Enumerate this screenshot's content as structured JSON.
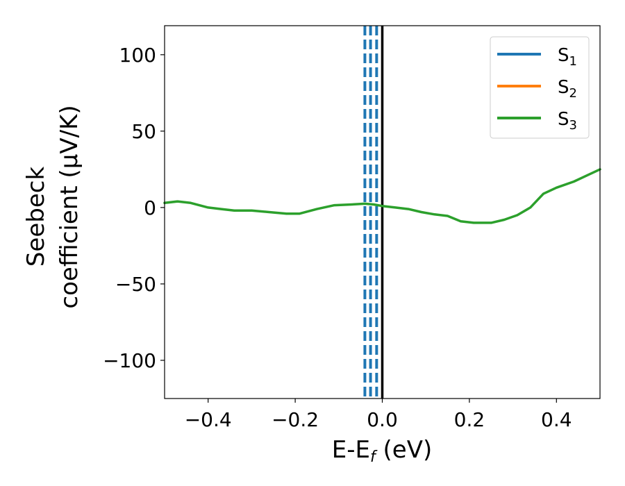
{
  "chart_data": {
    "type": "line",
    "xlabel": {
      "main": "E-E",
      "sub": "f",
      "suffix": " (eV)"
    },
    "ylabel": {
      "line1": "Seebeck",
      "line2": "coefficient  (μV/K)"
    },
    "xlim": [
      -0.5,
      0.5
    ],
    "ylim": [
      -125,
      119
    ],
    "x_ticks": [
      -0.4,
      -0.2,
      0.0,
      0.2,
      0.4
    ],
    "x_tick_labels": [
      "−0.4",
      "−0.2",
      "0.0",
      "0.2",
      "0.4"
    ],
    "y_ticks": [
      100,
      50,
      0,
      -50,
      -100
    ],
    "y_tick_labels": [
      "100",
      "50",
      "0",
      "−50",
      "−100"
    ],
    "legend_position": "upper right",
    "legend": [
      {
        "main": "S",
        "sub": "1",
        "color": "#1f77b4"
      },
      {
        "main": "S",
        "sub": "2",
        "color": "#ff7f0e"
      },
      {
        "main": "S",
        "sub": "3",
        "color": "#2ca02c"
      }
    ],
    "series": [
      {
        "color": "#2ca02c",
        "x": [
          -0.5,
          -0.47,
          -0.44,
          -0.4,
          -0.37,
          -0.34,
          -0.3,
          -0.26,
          -0.22,
          -0.19,
          -0.15,
          -0.11,
          -0.07,
          -0.04,
          -0.02,
          0.0,
          0.03,
          0.06,
          0.09,
          0.12,
          0.15,
          0.18,
          0.21,
          0.25,
          0.28,
          0.31,
          0.34,
          0.37,
          0.4,
          0.44,
          0.47,
          0.5
        ],
        "y": [
          3,
          4,
          3,
          0,
          -1,
          -2,
          -2,
          -3,
          -4,
          -4,
          -1,
          1.5,
          2,
          2.5,
          2,
          1,
          0,
          -1,
          -3,
          -4.5,
          -5.5,
          -9,
          -10,
          -10,
          -8,
          -5,
          0,
          9,
          13,
          17,
          21,
          25
        ]
      }
    ],
    "vertical_lines": [
      {
        "x": -0.04,
        "color": "#1f77b4",
        "style": "dashed"
      },
      {
        "x": -0.027,
        "color": "#1f77b4",
        "style": "dashed"
      },
      {
        "x": -0.013,
        "color": "#1f77b4",
        "style": "dashed"
      },
      {
        "x": 0.0,
        "color": "#000000",
        "style": "solid"
      }
    ]
  }
}
